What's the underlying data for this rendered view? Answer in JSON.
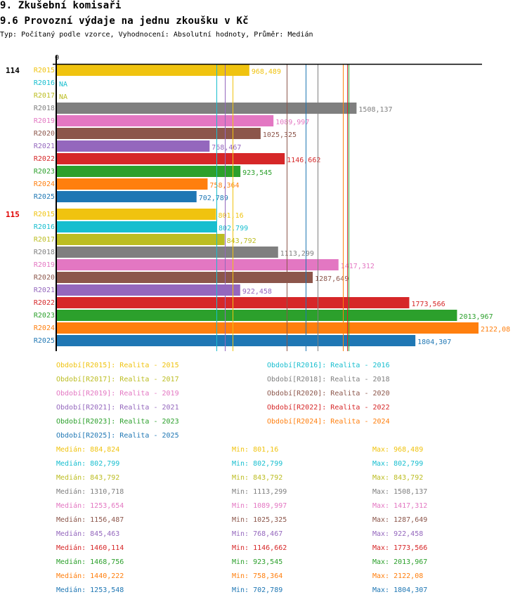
{
  "header": {
    "section_title": "9. Zkušební komisaři",
    "chart_title": "9.6 Provozní výdaje na jednu zkoušku v Kč",
    "subtitle": "Typ: Počítaný podle vzorce, Vyhodnocení: Absolutní hodnoty, Průměr: Medián"
  },
  "chart_data": {
    "type": "bar",
    "orientation": "horizontal",
    "title": "9.6 Provozní výdaje na jednu zkoušku v Kč",
    "xlabel": "",
    "ylabel": "",
    "x_tick_labels": [
      "0"
    ],
    "xlim": [
      0,
      2122.08
    ],
    "grid": false,
    "groups": [
      {
        "label": "114",
        "label_color": "#000000"
      },
      {
        "label": "115",
        "label_color": "#e00000"
      }
    ],
    "categories": [
      "R2015",
      "R2016",
      "R2017",
      "R2018",
      "R2019",
      "R2020",
      "R2021",
      "R2022",
      "R2023",
      "R2024",
      "R2025"
    ],
    "series": [
      {
        "name": "R2015",
        "color": "#f0c30f",
        "values": [
          968.489,
          801.16
        ],
        "labels": [
          "968,489",
          "801,16"
        ]
      },
      {
        "name": "R2016",
        "color": "#17becf",
        "values": [
          null,
          802.799
        ],
        "labels": [
          "NA",
          "802,799"
        ]
      },
      {
        "name": "R2017",
        "color": "#bcbd22",
        "values": [
          null,
          843.792
        ],
        "labels": [
          "NA",
          "843,792"
        ]
      },
      {
        "name": "R2018",
        "color": "#7f7f7f",
        "values": [
          1508.137,
          1113.299
        ],
        "labels": [
          "1508,137",
          "1113,299"
        ]
      },
      {
        "name": "R2019",
        "color": "#e377c2",
        "values": [
          1089.997,
          1417.312
        ],
        "labels": [
          "1089,997",
          "1417,312"
        ]
      },
      {
        "name": "R2020",
        "color": "#8c564b",
        "values": [
          1025.325,
          1287.649
        ],
        "labels": [
          "1025,325",
          "1287,649"
        ]
      },
      {
        "name": "R2021",
        "color": "#9467bd",
        "values": [
          768.467,
          922.458
        ],
        "labels": [
          "768,467",
          "922,458"
        ]
      },
      {
        "name": "R2022",
        "color": "#d62728",
        "values": [
          1146.662,
          1773.566
        ],
        "labels": [
          "1146,662",
          "1773,566"
        ]
      },
      {
        "name": "R2023",
        "color": "#2ca02c",
        "values": [
          923.545,
          2013.967
        ],
        "labels": [
          "923,545",
          "2013,967"
        ]
      },
      {
        "name": "R2024",
        "color": "#ff7f0e",
        "values": [
          758.364,
          2122.08
        ],
        "labels": [
          "758,364",
          "2122,08"
        ]
      },
      {
        "name": "R2025",
        "color": "#1f77b4",
        "values": [
          702.789,
          1804.307
        ],
        "labels": [
          "702,789",
          "1804,307"
        ]
      }
    ],
    "median_lines": [
      {
        "series": "R2015",
        "value": 884.824
      },
      {
        "series": "R2016",
        "value": 802.799
      },
      {
        "series": "R2017",
        "value": 843.792
      },
      {
        "series": "R2018",
        "value": 1310.718
      },
      {
        "series": "R2019",
        "value": 1253.654
      },
      {
        "series": "R2020",
        "value": 1156.487
      },
      {
        "series": "R2021",
        "value": 845.463
      },
      {
        "series": "R2022",
        "value": 1460.114
      },
      {
        "series": "R2023",
        "value": 1468.756
      },
      {
        "series": "R2024",
        "value": 1440.222
      },
      {
        "series": "R2025",
        "value": 1253.548
      }
    ],
    "legend": [
      {
        "text": "Období[R2015]: Realita - 2015",
        "color": "#f0c30f"
      },
      {
        "text": "Období[R2016]: Realita - 2016",
        "color": "#17becf"
      },
      {
        "text": "Období[R2017]: Realita - 2017",
        "color": "#bcbd22"
      },
      {
        "text": "Období[R2018]: Realita - 2018",
        "color": "#7f7f7f"
      },
      {
        "text": "Období[R2019]: Realita - 2019",
        "color": "#e377c2"
      },
      {
        "text": "Období[R2020]: Realita - 2020",
        "color": "#8c564b"
      },
      {
        "text": "Období[R2021]: Realita - 2021",
        "color": "#9467bd"
      },
      {
        "text": "Období[R2022]: Realita - 2022",
        "color": "#d62728"
      },
      {
        "text": "Období[R2023]: Realita - 2023",
        "color": "#2ca02c"
      },
      {
        "text": "Období[R2024]: Realita - 2024",
        "color": "#ff7f0e"
      },
      {
        "text": "Období[R2025]: Realita - 2025",
        "color": "#1f77b4"
      }
    ],
    "legend_placement": "bottom",
    "stats": [
      {
        "series": "R2015",
        "color": "#f0c30f",
        "median": "Medián: 884,824",
        "min": "Min: 801,16",
        "max": "Max: 968,489"
      },
      {
        "series": "R2016",
        "color": "#17becf",
        "median": "Medián: 802,799",
        "min": "Min: 802,799",
        "max": "Max: 802,799"
      },
      {
        "series": "R2017",
        "color": "#bcbd22",
        "median": "Medián: 843,792",
        "min": "Min: 843,792",
        "max": "Max: 843,792"
      },
      {
        "series": "R2018",
        "color": "#7f7f7f",
        "median": "Medián: 1310,718",
        "min": "Min: 1113,299",
        "max": "Max: 1508,137"
      },
      {
        "series": "R2019",
        "color": "#e377c2",
        "median": "Medián: 1253,654",
        "min": "Min: 1089,997",
        "max": "Max: 1417,312"
      },
      {
        "series": "R2020",
        "color": "#8c564b",
        "median": "Medián: 1156,487",
        "min": "Min: 1025,325",
        "max": "Max: 1287,649"
      },
      {
        "series": "R2021",
        "color": "#9467bd",
        "median": "Medián: 845,463",
        "min": "Min: 768,467",
        "max": "Max: 922,458"
      },
      {
        "series": "R2022",
        "color": "#d62728",
        "median": "Medián: 1460,114",
        "min": "Min: 1146,662",
        "max": "Max: 1773,566"
      },
      {
        "series": "R2023",
        "color": "#2ca02c",
        "median": "Medián: 1468,756",
        "min": "Min: 923,545",
        "max": "Max: 2013,967"
      },
      {
        "series": "R2024",
        "color": "#ff7f0e",
        "median": "Medián: 1440,222",
        "min": "Min: 758,364",
        "max": "Max: 2122,08"
      },
      {
        "series": "R2025",
        "color": "#1f77b4",
        "median": "Medián: 1253,548",
        "min": "Min: 702,789",
        "max": "Max: 1804,307"
      }
    ]
  }
}
